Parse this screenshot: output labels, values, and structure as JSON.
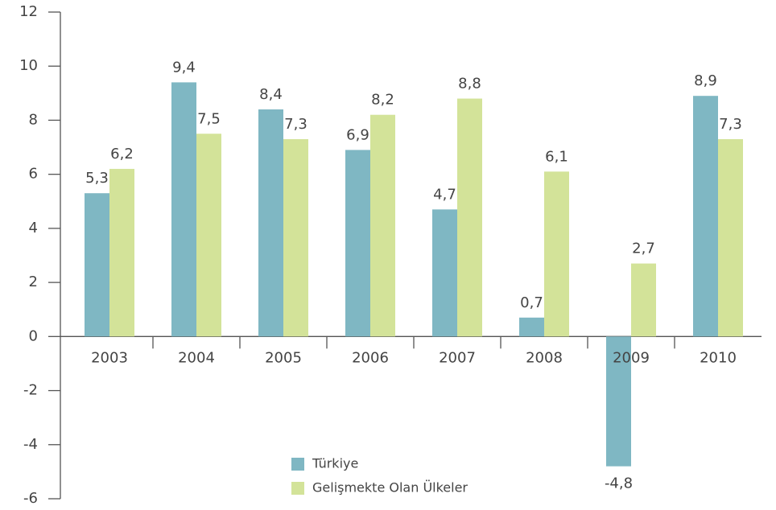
{
  "chart_data": {
    "type": "bar",
    "categories": [
      "2003",
      "2004",
      "2005",
      "2006",
      "2007",
      "2008",
      "2009",
      "2010"
    ],
    "series": [
      {
        "name": "Türkiye",
        "color": "#7fb7c3",
        "values": [
          5.3,
          9.4,
          8.4,
          6.9,
          4.7,
          0.7,
          -4.8,
          8.9
        ],
        "value_labels": [
          "5,3",
          "9,4",
          "8,4",
          "6,9",
          "4,7",
          "0,7",
          "-4,8",
          "8,9"
        ]
      },
      {
        "name": "Gelişmekte Olan Ülkeler",
        "color": "#d3e399",
        "values": [
          6.2,
          7.5,
          7.3,
          8.2,
          8.8,
          6.1,
          2.7,
          7.3
        ],
        "value_labels": [
          "6,2",
          "7,5",
          "7,3",
          "8,2",
          "8,8",
          "6,1",
          "2,7",
          "7,3"
        ]
      }
    ],
    "ylim": [
      -6,
      12
    ],
    "yticks": [
      -6,
      -4,
      -2,
      0,
      2,
      4,
      6,
      8,
      10,
      12
    ],
    "legend": "bottom"
  }
}
